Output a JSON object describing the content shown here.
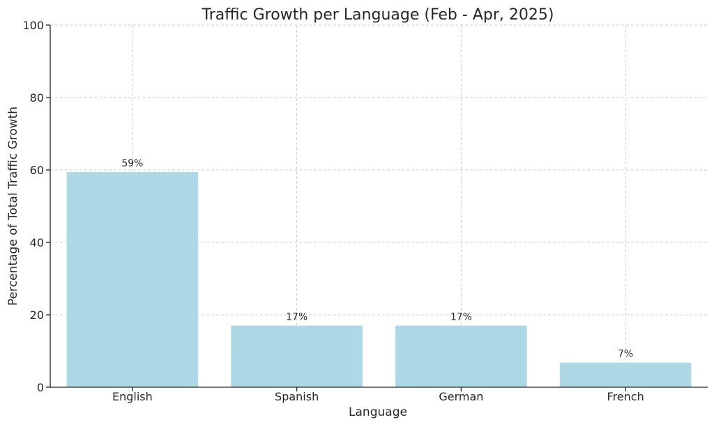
{
  "chart_data": {
    "type": "bar",
    "title": "Traffic Growth per Language (Feb - Apr, 2025)",
    "xlabel": "Language",
    "ylabel": "Percentage of Total Traffic Growth",
    "categories": [
      "English",
      "Spanish",
      "German",
      "French"
    ],
    "values": [
      59.4,
      17.0,
      17.0,
      6.8
    ],
    "data_labels": [
      "59%",
      "17%",
      "17%",
      "7%"
    ],
    "ylim": [
      0,
      100
    ],
    "yticks": [
      0,
      20,
      40,
      60,
      80,
      100
    ],
    "grid": true,
    "bar_color": "#add8e6"
  }
}
